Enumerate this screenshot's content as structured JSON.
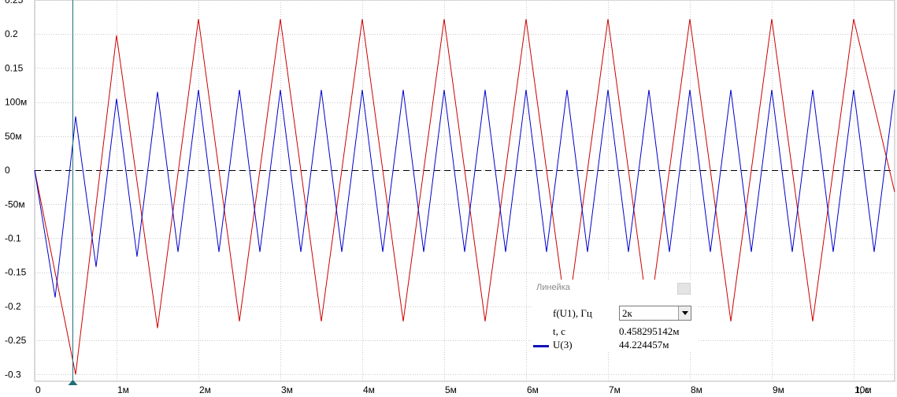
{
  "chart_data": {
    "type": "line",
    "title": "",
    "xlabel": "t, с",
    "ylabel": "",
    "xlim": [
      0,
      10.5
    ],
    "ylim": [
      -0.31,
      0.25
    ],
    "grid": true,
    "x_ticks": [
      0,
      1,
      2,
      3,
      4,
      5,
      6,
      7,
      8,
      9,
      10
    ],
    "x_tick_labels": [
      "0",
      "1м",
      "2м",
      "3м",
      "4м",
      "5м",
      "6м",
      "7м",
      "8м",
      "9м",
      "10м"
    ],
    "y_ticks": [
      0.25,
      0.2,
      0.15,
      0.1,
      0.05,
      0,
      -0.05,
      -0.1,
      -0.15,
      -0.2,
      -0.25,
      -0.3
    ],
    "y_tick_labels": [
      "0.25",
      "0.2",
      "0.15",
      "100м",
      "50м",
      "0",
      "-50м",
      "-0.1",
      "-0.15",
      "-0.2",
      "-0.25",
      "-0.3"
    ],
    "series": [
      {
        "name": "",
        "color": "#cc0000",
        "x": [
          0,
          0.5,
          1.0,
          1.5,
          2.0,
          2.5,
          3.0,
          3.5,
          4.0,
          4.5,
          5.0,
          5.5,
          6.0,
          6.5,
          7.0,
          7.5,
          8.0,
          8.5,
          9.0,
          9.5,
          10.0,
          10.5
        ],
        "y": [
          0,
          -0.3,
          0.198,
          -0.232,
          0.222,
          -0.222,
          0.222,
          -0.222,
          0.222,
          -0.222,
          0.222,
          -0.222,
          0.222,
          -0.222,
          0.222,
          -0.222,
          0.222,
          -0.222,
          0.222,
          -0.222,
          0.222,
          -0.032
        ]
      },
      {
        "name": "U(3)",
        "color": "#0000cc",
        "x": [
          0,
          0.25,
          0.47,
          0.5,
          0.75,
          1.0,
          1.25,
          1.5,
          1.75,
          2.0,
          2.25,
          2.5,
          2.75,
          3.0,
          3.25,
          3.5,
          3.75,
          4.0,
          4.25,
          4.5,
          4.75,
          5.0,
          5.25,
          5.5,
          5.75,
          6.0,
          6.25,
          6.5,
          6.75,
          7.0,
          7.25,
          7.5,
          7.75,
          8.0,
          8.25,
          8.5,
          8.75,
          9.0,
          9.25,
          9.5,
          9.75,
          10.0,
          10.25,
          10.5
        ],
        "y": [
          0,
          -0.187,
          0.044,
          0.079,
          -0.142,
          0.105,
          -0.127,
          0.115,
          -0.12,
          0.118,
          -0.12,
          0.118,
          -0.12,
          0.118,
          -0.12,
          0.118,
          -0.12,
          0.118,
          -0.12,
          0.118,
          -0.12,
          0.118,
          -0.12,
          0.118,
          -0.12,
          0.118,
          -0.12,
          0.118,
          -0.12,
          0.118,
          -0.12,
          0.118,
          -0.12,
          0.118,
          -0.12,
          0.118,
          -0.12,
          0.118,
          -0.12,
          0.118,
          -0.12,
          0.118,
          -0.12,
          0.118
        ]
      }
    ],
    "cursor_x": 0.458295142
  },
  "ruler": {
    "title": "Линейка",
    "freq_label": "f(U1), Гц",
    "freq_value": "2к",
    "t_label": "t, с",
    "t_value": "0.458295142м",
    "series_label": "U(3)",
    "series_value": "44.224457м",
    "series_color": "#1111bb"
  }
}
